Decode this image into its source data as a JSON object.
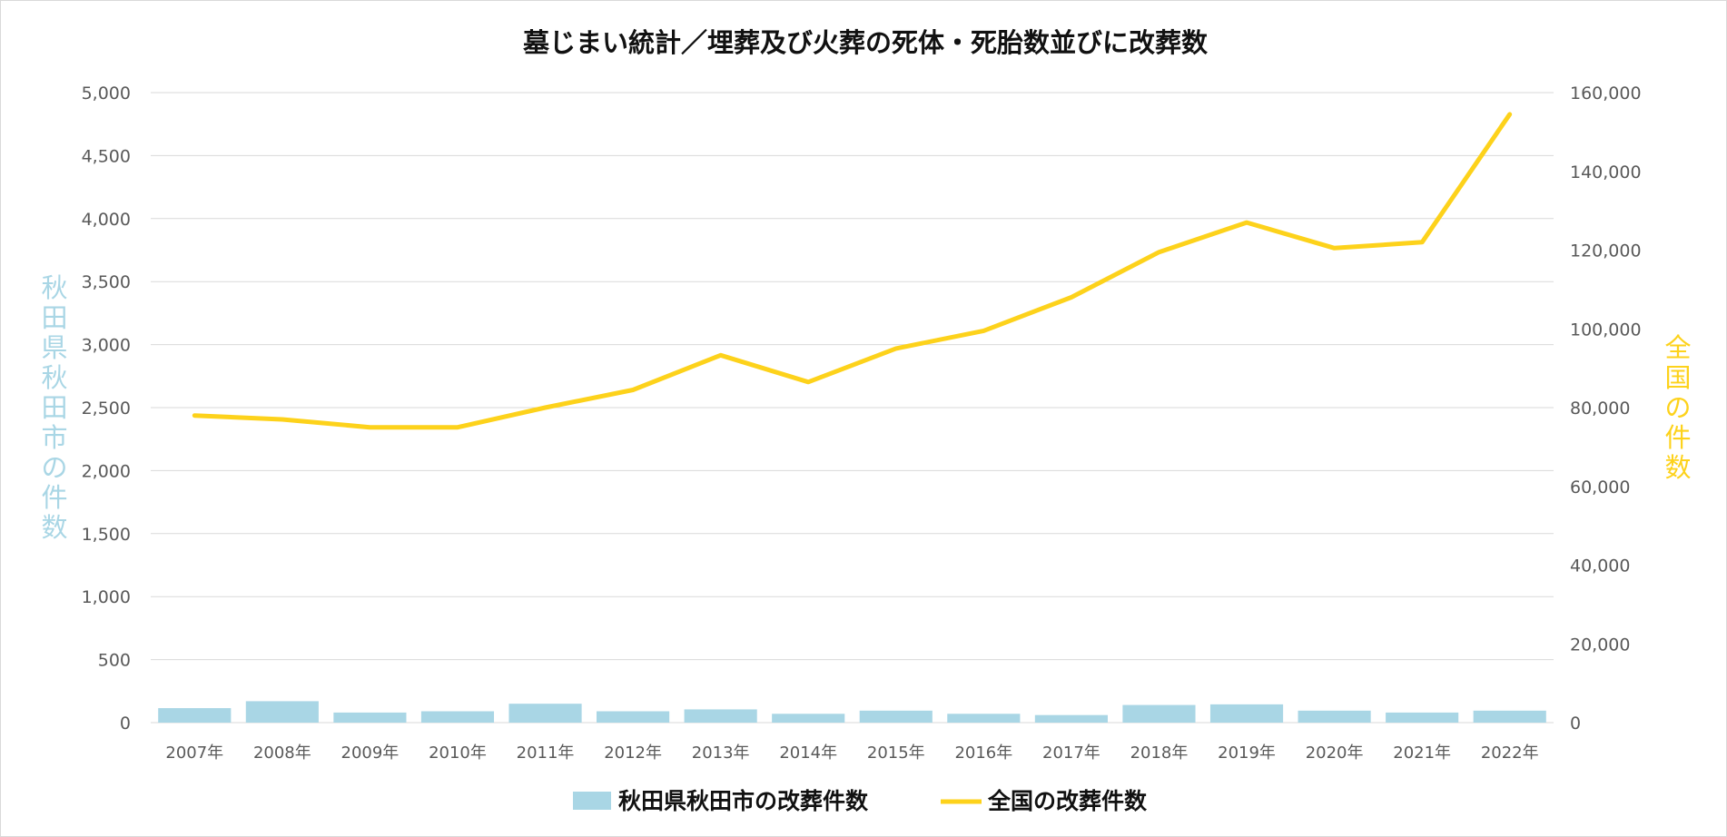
{
  "chart_data": {
    "type": "bar",
    "title": "墓じまい統計／埋葬及び火葬の死体・死胎数並びに改葬数",
    "categories": [
      "2007年",
      "2008年",
      "2009年",
      "2010年",
      "2011年",
      "2012年",
      "2013年",
      "2014年",
      "2015年",
      "2016年",
      "2017年",
      "2018年",
      "2019年",
      "2020年",
      "2021年",
      "2022年"
    ],
    "y_left": {
      "label": "秋田県秋田市の件数",
      "range": [
        0,
        5000
      ],
      "ticks": [
        "0",
        "500",
        "1,000",
        "1,500",
        "2,000",
        "2,500",
        "3,000",
        "3,500",
        "4,000",
        "4,500",
        "5,000"
      ]
    },
    "y_right": {
      "label": "全国の件数",
      "range": [
        0,
        160000
      ],
      "ticks": [
        "0",
        "20,000",
        "40,000",
        "60,000",
        "80,000",
        "100,000",
        "120,000",
        "140,000",
        "160,000"
      ]
    },
    "grid": true,
    "legend_position": "bottom",
    "series": [
      {
        "name": "秋田県秋田市の改葬件数",
        "type": "bar",
        "axis": "left",
        "color": "#a9d6e5",
        "values": [
          115,
          170,
          80,
          90,
          150,
          90,
          105,
          70,
          95,
          70,
          60,
          140,
          145,
          95,
          80,
          95
        ]
      },
      {
        "name": "全国の改葬件数",
        "type": "line",
        "axis": "right",
        "color": "#fdd21b",
        "values": [
          78000,
          77000,
          75000,
          75000,
          80000,
          84500,
          93300,
          86500,
          95000,
          99500,
          108000,
          119500,
          127000,
          120500,
          122000,
          154500
        ]
      }
    ]
  }
}
